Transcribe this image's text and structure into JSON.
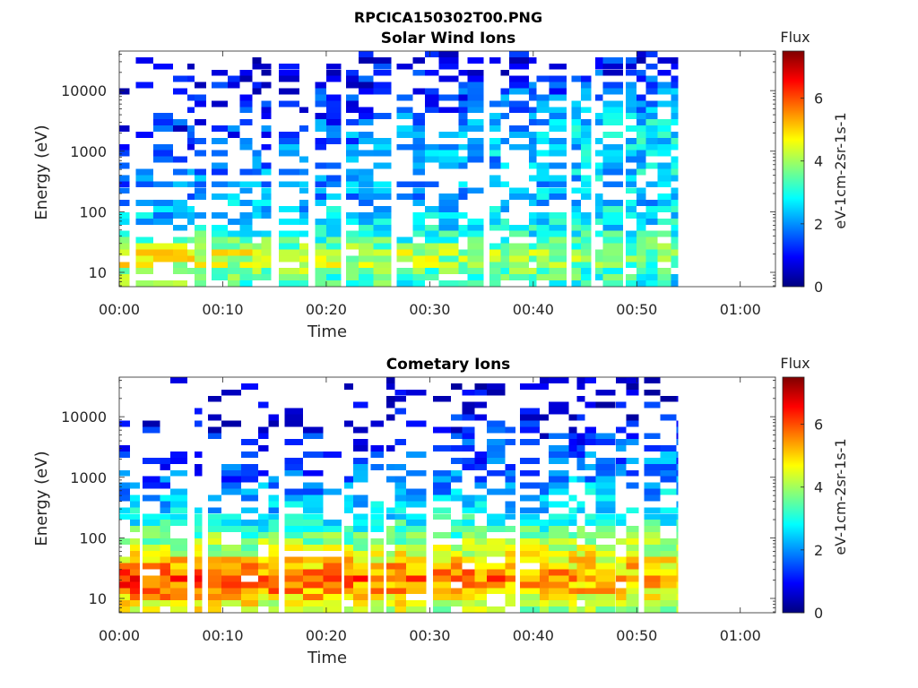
{
  "figure": {
    "title": "RPCICA150302T00.PNG"
  },
  "chart_data": [
    {
      "type": "heatmap",
      "title": "Solar Wind Ions",
      "xlabel": "Time",
      "ylabel": "Energy (eV)",
      "x_tick_labels": [
        "00:00",
        "00:10",
        "00:20",
        "00:30",
        "00:40",
        "00:50",
        "01:00"
      ],
      "x_ticks_min": [
        0,
        10,
        20,
        30,
        40,
        50,
        60
      ],
      "xlim_min": [
        0,
        63.4
      ],
      "y_scale": "log",
      "y_tick_values": [
        10,
        100,
        1000,
        10000
      ],
      "y_tick_labels": [
        "10",
        "100",
        "1000",
        "10000"
      ],
      "ylim": [
        5.8,
        45000
      ],
      "data_time_range_min": [
        0,
        54
      ],
      "colorbar": {
        "title": "Flux",
        "label": "eV-1cm-2sr-1s-1",
        "range": [
          0,
          7.5
        ],
        "tick_values": [
          0,
          2,
          4,
          6
        ],
        "tick_labels": [
          "0",
          "2",
          "4",
          "6"
        ],
        "colormap": "jet"
      },
      "flux_profile": {
        "description": "approximate flux (colorbar units) vs energy; stronger at low energy",
        "energy_eV": [
          7,
          12,
          20,
          30,
          50,
          80,
          150,
          300,
          800,
          2000,
          5000,
          15000,
          40000
        ],
        "early_flux": [
          3.6,
          4.4,
          4.6,
          3.5,
          2.8,
          2.5,
          2.0,
          1.7,
          1.3,
          1.1,
          0.8,
          0.6,
          0.3
        ],
        "late_flux": [
          2.8,
          3.4,
          3.8,
          3.3,
          2.8,
          2.7,
          2.5,
          2.6,
          2.7,
          2.8,
          2.2,
          1.5,
          0.8
        ]
      }
    },
    {
      "type": "heatmap",
      "title": "Cometary Ions",
      "xlabel": "Time",
      "ylabel": "Energy (eV)",
      "x_tick_labels": [
        "00:00",
        "00:10",
        "00:20",
        "00:30",
        "00:40",
        "00:50",
        "01:00"
      ],
      "x_ticks_min": [
        0,
        10,
        20,
        30,
        40,
        50,
        60
      ],
      "xlim_min": [
        0,
        63.4
      ],
      "y_scale": "log",
      "y_tick_values": [
        10,
        100,
        1000,
        10000
      ],
      "y_tick_labels": [
        "10",
        "100",
        "1000",
        "10000"
      ],
      "ylim": [
        5.8,
        45000
      ],
      "data_time_range_min": [
        0,
        54
      ],
      "colorbar": {
        "title": "Flux",
        "label": "eV-1cm-2sr-1s-1",
        "range": [
          0,
          7.5
        ],
        "tick_values": [
          0,
          2,
          4,
          6
        ],
        "tick_labels": [
          "0",
          "2",
          "4",
          "6"
        ],
        "colormap": "jet"
      },
      "flux_profile": {
        "description": "approximate flux (colorbar units) vs energy; peak near 15-40 eV",
        "energy_eV": [
          7,
          12,
          20,
          30,
          50,
          80,
          150,
          300,
          800,
          2000,
          5000,
          15000,
          40000
        ],
        "early_flux": [
          4.5,
          5.6,
          6.2,
          5.5,
          4.6,
          3.8,
          3.0,
          2.4,
          1.6,
          1.1,
          0.7,
          0.3,
          0.1
        ],
        "late_flux": [
          4.0,
          4.8,
          5.4,
          5.0,
          4.5,
          4.0,
          3.2,
          2.6,
          2.2,
          1.8,
          1.3,
          0.8,
          0.3
        ]
      }
    }
  ]
}
